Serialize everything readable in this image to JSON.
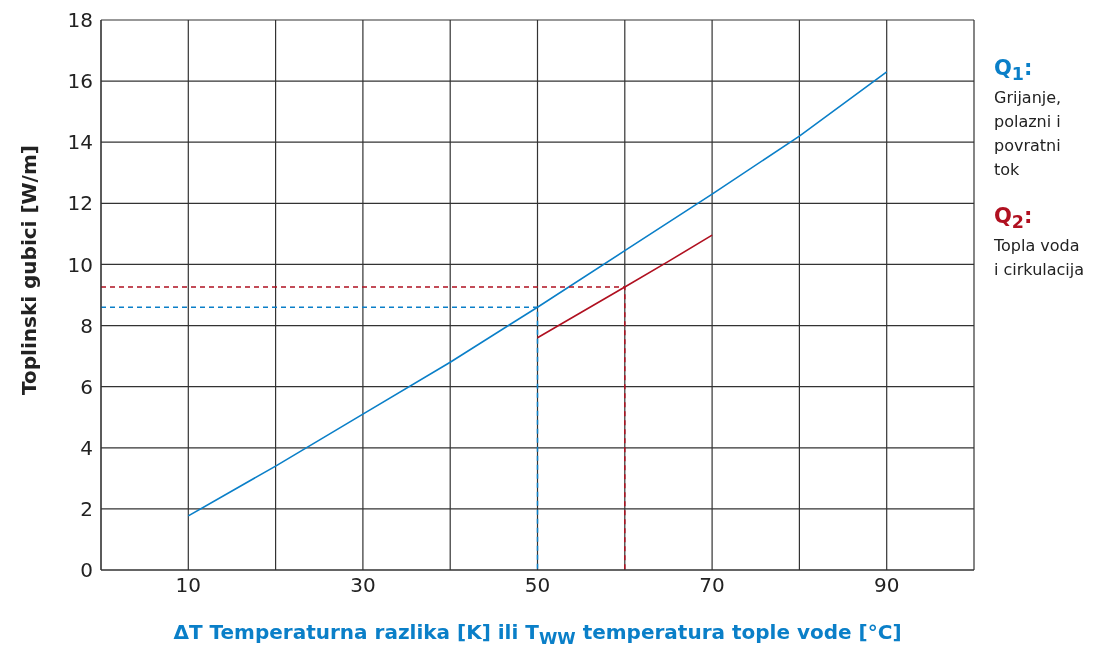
{
  "chart_data": {
    "type": "line",
    "xlabel": "ΔT Temperaturna razlika [K] ili T$_{WW}$ temperatura tople vode [°C]",
    "ylabel": "Toplinski gubici [W/m]",
    "xlim": [
      0,
      100
    ],
    "xticks": [
      {
        "value": 0,
        "label": null
      },
      10,
      {
        "value": 20,
        "label": null
      },
      30,
      {
        "value": 40,
        "label": null
      },
      50,
      {
        "value": 60,
        "label": null
      },
      70,
      {
        "value": 80,
        "label": null
      },
      90,
      {
        "value": 100,
        "label": null
      }
    ],
    "ylim": [
      0,
      18
    ],
    "yticks": [
      0,
      2,
      4,
      6,
      8,
      10,
      12,
      14,
      16,
      18
    ],
    "grid": true,
    "series": [
      {
        "color": "#0a7fc8",
        "x": [
          10,
          20,
          30,
          40,
          50,
          60,
          70,
          80,
          90
        ],
        "values": [
          1.77,
          3.4,
          5.1,
          6.8,
          8.6,
          10.45,
          12.3,
          14.2,
          16.3
        ]
      },
      {
        "color": "#b01020",
        "x": [
          50,
          60,
          65,
          70
        ],
        "values": [
          7.6,
          9.26,
          10.1,
          10.96
        ]
      },
      {
        "color": "#0a7fc8",
        "line_style": "dashed",
        "x": [
          0,
          50,
          50
        ],
        "values": [
          8.6,
          8.6,
          0
        ]
      },
      {
        "color": "#b01020",
        "line_style": "dashed",
        "x": [
          0,
          60,
          60
        ],
        "values": [
          9.26,
          9.26,
          0
        ]
      }
    ],
    "annotations": [
      "Q$_{1}$:",
      "Grijanje, polazni i povratni tok",
      "Q$_{2}$:",
      "Topla voda i cirkulacija"
    ]
  }
}
